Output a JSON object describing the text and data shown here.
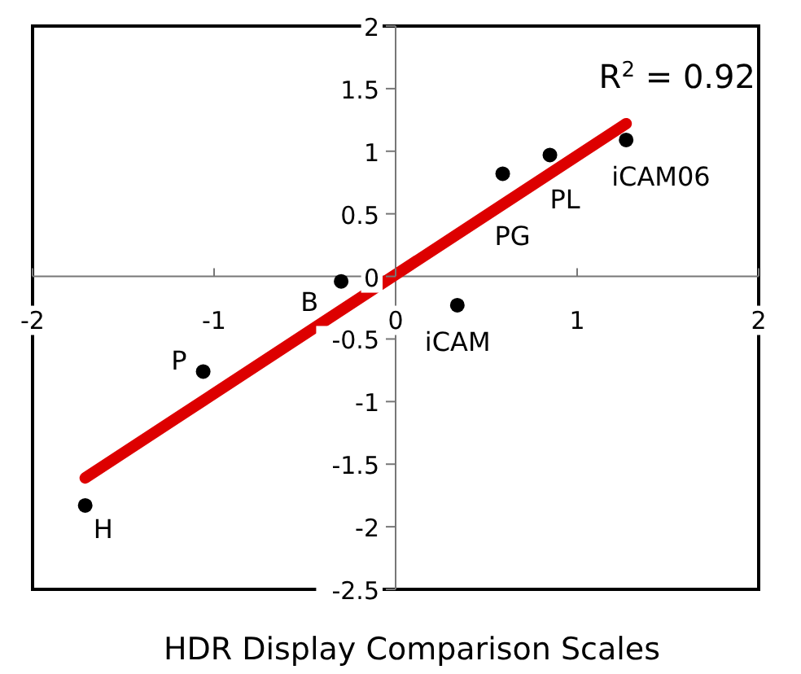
{
  "chart_data": {
    "type": "scatter",
    "xlabel": "HDR Display Comparison Scales",
    "xlim": [
      -2,
      2
    ],
    "xticks": [
      -2,
      -1,
      0,
      1,
      2
    ],
    "ylim": [
      -2.5,
      2
    ],
    "yticks": [
      -2.5,
      -2,
      -1.5,
      -1,
      -0.5,
      0,
      0.5,
      1,
      1.5,
      2
    ],
    "grid": false,
    "series": [
      {
        "marker": "circle",
        "color": "#000000",
        "x": [
          -1.71,
          -1.06,
          -0.3,
          0.34,
          0.59,
          0.85,
          1.27
        ],
        "values": [
          -1.83,
          -0.76,
          -0.04,
          -0.23,
          0.82,
          0.97,
          1.09
        ]
      },
      {
        "type": "line",
        "color": "#dd0000",
        "x": [
          -1.71,
          1.27
        ],
        "values": [
          -1.61,
          1.22
        ]
      }
    ],
    "annotations": [
      {
        "text": "H",
        "x": -1.71,
        "y": -1.83
      },
      {
        "text": "P",
        "x": -1.06,
        "y": -0.76
      },
      {
        "text": "B",
        "x": -0.3,
        "y": -0.04
      },
      {
        "text": "iCAM",
        "x": 0.34,
        "y": -0.23
      },
      {
        "text": "PG",
        "x": 0.59,
        "y": 0.82
      },
      {
        "text": "PL",
        "x": 0.85,
        "y": 0.97
      },
      {
        "text": "iCAM06",
        "x": 1.27,
        "y": 1.09
      },
      "R$^{2}$ = 0.92"
    ]
  }
}
